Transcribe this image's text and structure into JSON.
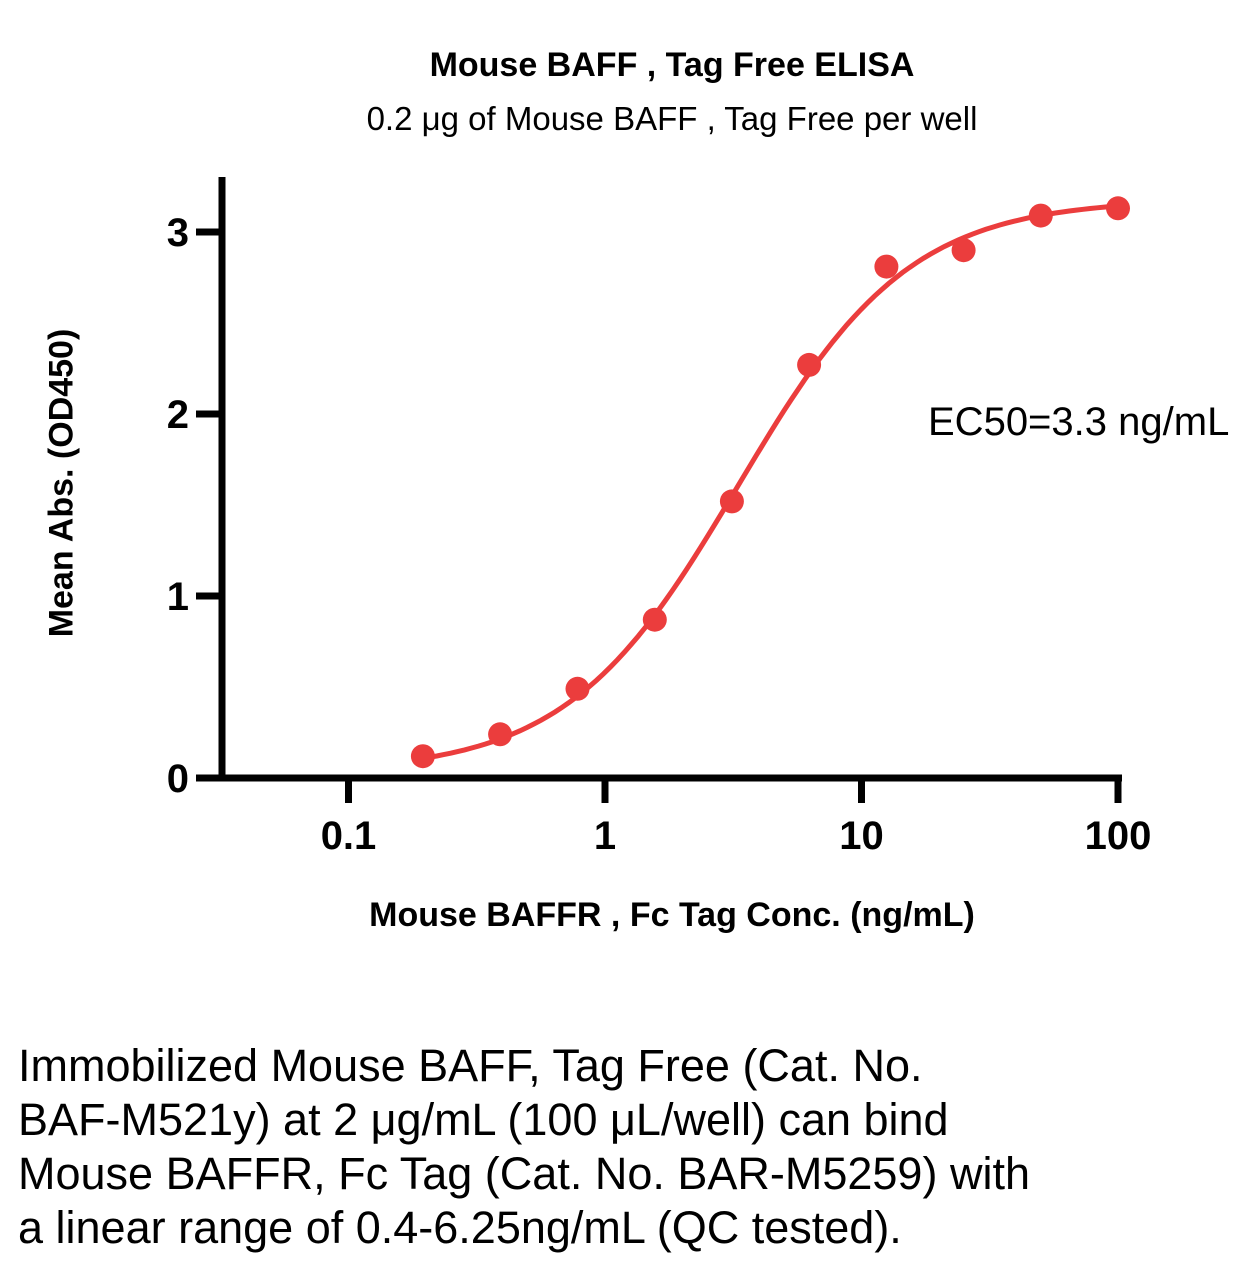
{
  "caption": {
    "lines": [
      "Immobilized Mouse BAFF, Tag Free (Cat. No.",
      "BAF-M521y) at 2 μg/mL (100 μL/well) can bind",
      "Mouse BAFFR, Fc Tag (Cat. No. BAR-M5259) with",
      "a linear range of 0.4-6.25ng/mL (QC tested)."
    ]
  },
  "chart_data": {
    "type": "scatter",
    "title": "Mouse BAFF , Tag Free ELISA",
    "subtitle": "0.2 μg of Mouse BAFF , Tag Free per well",
    "xlabel": "Mouse BAFFR , Fc Tag  Conc. (ng/mL)",
    "ylabel": "Mean Abs. (OD450)",
    "annotation": "EC50=3.3 ng/mL",
    "x_scale": "log",
    "xlim": [
      0.032,
      100
    ],
    "ylim": [
      0,
      3.3
    ],
    "grid": false,
    "legend": "none",
    "color": "#EB3D3D",
    "x": [
      0.195,
      0.39,
      0.781,
      1.563,
      3.125,
      6.25,
      12.5,
      25,
      50,
      100
    ],
    "y": [
      0.12,
      0.24,
      0.49,
      0.87,
      1.52,
      2.27,
      2.81,
      2.9,
      3.09,
      3.13
    ],
    "x_ticks": [
      {
        "value": 0.1,
        "label": "0.1"
      },
      {
        "value": 1,
        "label": "1"
      },
      {
        "value": 10,
        "label": "10"
      },
      {
        "value": 100,
        "label": "100"
      }
    ],
    "y_ticks": [
      {
        "value": 0,
        "label": "0"
      },
      {
        "value": 1,
        "label": "1"
      },
      {
        "value": 2,
        "label": "2"
      },
      {
        "value": 3,
        "label": "3"
      }
    ],
    "fit": {
      "model": "4PL",
      "ec50": 3.3,
      "hill": 1.3,
      "top": 3.18,
      "bottom": 0.03
    }
  }
}
